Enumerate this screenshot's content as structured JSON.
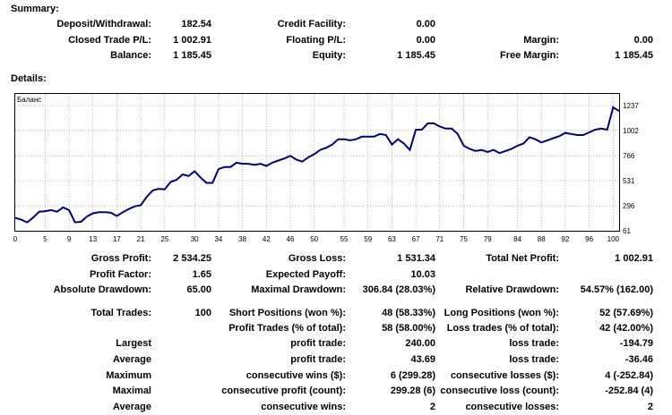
{
  "summary": {
    "heading": "Summary:",
    "deposit_label": "Deposit/Withdrawal:",
    "deposit_value": "182.54",
    "credit_label": "Credit Facility:",
    "credit_value": "0.00",
    "closed_label": "Closed Trade P/L:",
    "closed_value": "1 002.91",
    "floating_label": "Floating P/L:",
    "floating_value": "0.00",
    "margin_label": "Margin:",
    "margin_value": "0.00",
    "balance_label": "Balance:",
    "balance_value": "1 185.45",
    "equity_label": "Equity:",
    "equity_value": "1 185.45",
    "free_margin_label": "Free Margin:",
    "free_margin_value": "1 185.45"
  },
  "details": {
    "heading": "Details:",
    "rows": [
      {
        "c1l": "Gross Profit:",
        "c1v": "2 534.25",
        "c2l": "Gross Loss:",
        "c2v": "1 531.34",
        "c3l": "Total Net Profit:",
        "c3v": "1 002.91"
      },
      {
        "c1l": "Profit Factor:",
        "c1v": "1.65",
        "c2l": "Expected Payoff:",
        "c2v": "10.03",
        "c3l": "",
        "c3v": ""
      },
      {
        "c1l": "Absolute Drawdown:",
        "c1v": "65.00",
        "c2l": "Maximal Drawdown:",
        "c2v": "306.84 (28.03%)",
        "c3l": "Relative Drawdown:",
        "c3v": "54.57% (162.00)"
      },
      {
        "c1l": "Total Trades:",
        "c1v": "100",
        "c2l": "Short Positions (won %):",
        "c2v": "48 (58.33%)",
        "c3l": "Long Positions (won %):",
        "c3v": "52 (57.69%)"
      },
      {
        "c1l": "",
        "c1v": "",
        "c2l": "Profit Trades (% of total):",
        "c2v": "58 (58.00%)",
        "c3l": "Loss trades (% of total):",
        "c3v": "42 (42.00%)"
      },
      {
        "c1l": "Largest",
        "c1v": "",
        "c2l": "profit trade:",
        "c2v": "240.00",
        "c3l": "loss trade:",
        "c3v": "-194.79"
      },
      {
        "c1l": "Average",
        "c1v": "",
        "c2l": "profit trade:",
        "c2v": "43.69",
        "c3l": "loss trade:",
        "c3v": "-36.46"
      },
      {
        "c1l": "Maximum",
        "c1v": "",
        "c2l": "consecutive wins ($):",
        "c2v": "6 (299.28)",
        "c3l": "consecutive losses ($):",
        "c3v": "4 (-252.84)"
      },
      {
        "c1l": "Maximal",
        "c1v": "",
        "c2l": "consecutive profit (count):",
        "c2v": "299.28 (6)",
        "c3l": "consecutive loss (count):",
        "c3v": "-252.84 (4)"
      },
      {
        "c1l": "Average",
        "c1v": "",
        "c2l": "consecutive wins:",
        "c2v": "2",
        "c3l": "consecutive losses:",
        "c3v": "2"
      }
    ]
  },
  "chart_data": {
    "type": "line",
    "title": "Баланс",
    "line_color": "#000080",
    "xlim": [
      0,
      101
    ],
    "ylim": [
      61,
      1237
    ],
    "x_ticks": [
      "0",
      "5",
      "9",
      "13",
      "17",
      "21",
      "25",
      "30",
      "34",
      "38",
      "42",
      "46",
      "50",
      "55",
      "59",
      "63",
      "67",
      "71",
      "75",
      "79",
      "84",
      "88",
      "92",
      "96",
      "100"
    ],
    "y_ticks": [
      "1237",
      "1002",
      "766",
      "531",
      "296",
      "61"
    ],
    "x": [
      0,
      1,
      2,
      3,
      4,
      5,
      6,
      7,
      8,
      9,
      10,
      11,
      12,
      13,
      14,
      15,
      16,
      17,
      18,
      19,
      20,
      21,
      22,
      23,
      24,
      25,
      26,
      27,
      28,
      29,
      30,
      31,
      32,
      33,
      34,
      35,
      36,
      37,
      38,
      39,
      40,
      41,
      42,
      43,
      44,
      45,
      46,
      47,
      48,
      49,
      50,
      51,
      52,
      53,
      54,
      55,
      56,
      57,
      58,
      59,
      60,
      61,
      62,
      63,
      64,
      65,
      66,
      67,
      68,
      69,
      70,
      71,
      72,
      73,
      74,
      75,
      76,
      77,
      78,
      79,
      80,
      81,
      82,
      83,
      84,
      85,
      86,
      87,
      88,
      89,
      90,
      91,
      92,
      93,
      94,
      95,
      96,
      97,
      98,
      99,
      100,
      101
    ],
    "values": [
      182,
      165,
      140,
      185,
      240,
      245,
      255,
      240,
      280,
      255,
      140,
      145,
      195,
      225,
      235,
      235,
      230,
      200,
      235,
      265,
      290,
      300,
      380,
      440,
      455,
      450,
      520,
      540,
      590,
      575,
      620,
      560,
      510,
      510,
      640,
      660,
      660,
      700,
      690,
      690,
      680,
      690,
      670,
      700,
      720,
      740,
      765,
      730,
      710,
      750,
      780,
      820,
      840,
      870,
      920,
      920,
      910,
      920,
      945,
      945,
      945,
      970,
      960,
      870,
      920,
      880,
      820,
      1010,
      1010,
      1070,
      1070,
      1040,
      1020,
      1020,
      970,
      860,
      830,
      810,
      820,
      800,
      820,
      790,
      810,
      830,
      860,
      880,
      940,
      920,
      890,
      910,
      930,
      950,
      980,
      970,
      960,
      960,
      985,
      1010,
      1020,
      1010,
      1220,
      1185
    ]
  }
}
